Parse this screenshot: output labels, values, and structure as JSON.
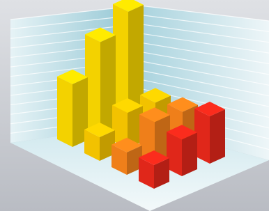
{
  "chart_data": {
    "type": "bar3d",
    "ylim": [
      0,
      10
    ],
    "series": [
      {
        "color": "#f3d200",
        "values": [
          5.3,
          7.8,
          9.3
        ]
      },
      {
        "color": "#f2c200",
        "values": [
          2,
          3,
          2.8
        ]
      },
      {
        "color": "#ef7f1a",
        "values": [
          1.9,
          3.4,
          3.2
        ]
      },
      {
        "color": "#e0271a",
        "values": [
          2,
          3.1,
          4
        ]
      }
    ]
  }
}
